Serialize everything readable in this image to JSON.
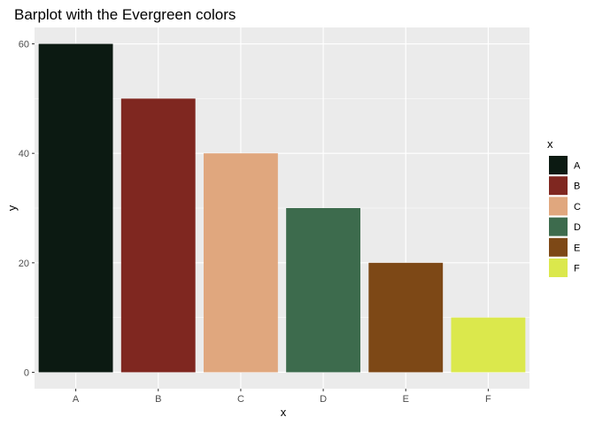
{
  "chart_data": {
    "type": "bar",
    "title": "Barplot with the Evergreen colors",
    "xlabel": "x",
    "ylabel": "y",
    "categories": [
      "A",
      "B",
      "C",
      "D",
      "E",
      "F"
    ],
    "values": [
      60,
      50,
      40,
      30,
      20,
      10
    ],
    "colors": [
      "#0c1a12",
      "#7f2720",
      "#e0a77e",
      "#3d6b4d",
      "#7d4816",
      "#dbe84c"
    ],
    "ylim": [
      0,
      63
    ],
    "y_ticks": [
      0,
      20,
      40,
      60
    ],
    "y_tick_labels": [
      "0",
      "20",
      "40",
      "60"
    ],
    "grid": true,
    "panel_background": "#ebebeb",
    "grid_color": "#ffffff",
    "legend": {
      "title": "x",
      "placement": "right",
      "entries": [
        "A",
        "B",
        "C",
        "D",
        "E",
        "F"
      ]
    }
  }
}
